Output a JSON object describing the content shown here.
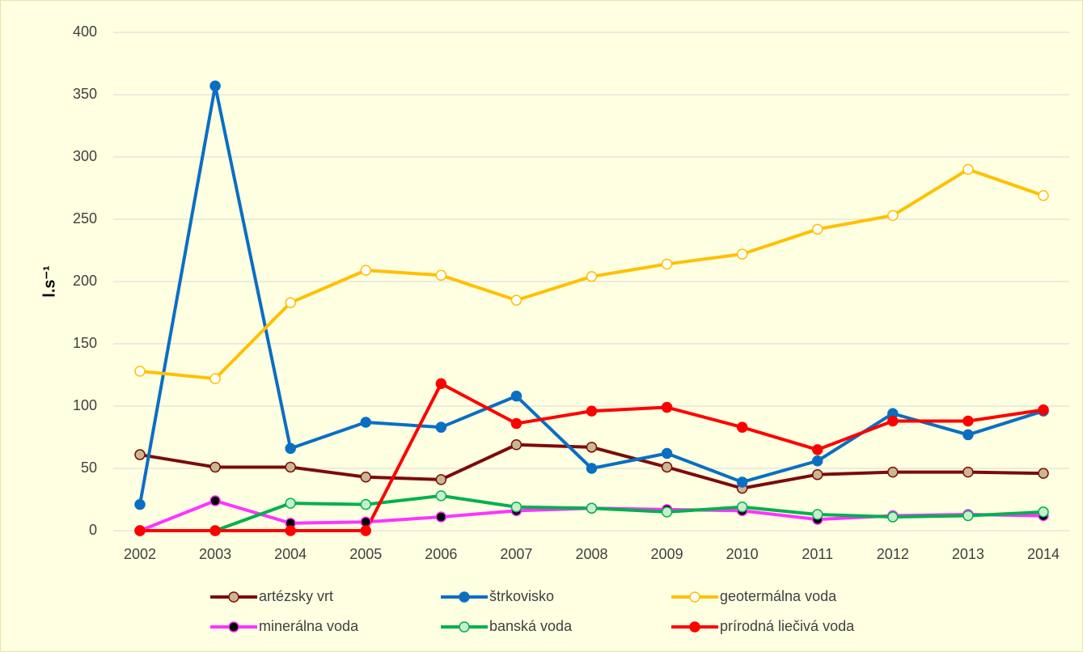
{
  "chart_data": {
    "type": "line",
    "y_label": "l.s⁻¹",
    "categories": [
      "2002",
      "2003",
      "2004",
      "2005",
      "2006",
      "2007",
      "2008",
      "2009",
      "2010",
      "2011",
      "2012",
      "2013",
      "2014"
    ],
    "ylim": [
      0,
      400
    ],
    "yticks": [
      0,
      50,
      100,
      150,
      200,
      250,
      300,
      350,
      400
    ],
    "grid": true,
    "series": [
      {
        "name": "artézsky vrt",
        "color": "#7b0c0c",
        "marker_fill": "#cbb88f",
        "values": [
          61,
          51,
          51,
          43,
          41,
          69,
          67,
          51,
          34,
          45,
          47,
          47,
          46
        ]
      },
      {
        "name": "štrkovisko",
        "color": "#0a6fc2",
        "marker_fill": "#0a6fc2",
        "values": [
          21,
          357,
          66,
          87,
          83,
          108,
          50,
          62,
          39,
          56,
          94,
          77,
          96
        ]
      },
      {
        "name": "geotermálna voda",
        "color": "#ffc000",
        "marker_fill": "#ffffff",
        "values": [
          128,
          122,
          183,
          209,
          205,
          185,
          204,
          214,
          222,
          242,
          253,
          290,
          269
        ]
      },
      {
        "name": "minerálna voda",
        "color": "#ff33ff",
        "marker_fill": "#000000",
        "values": [
          0,
          24,
          6,
          7,
          11,
          16,
          18,
          17,
          16,
          9,
          12,
          13,
          12
        ]
      },
      {
        "name": "banská voda",
        "color": "#00b050",
        "marker_fill": "#c6efce",
        "values": [
          0,
          0,
          22,
          21,
          28,
          19,
          18,
          15,
          19,
          13,
          11,
          12,
          15
        ]
      },
      {
        "name": "prírodná liečivá voda",
        "color": "#ff0000",
        "marker_fill": "#ff0000",
        "values": [
          0,
          0,
          0,
          0,
          118,
          86,
          96,
          99,
          83,
          65,
          88,
          88,
          97
        ]
      }
    ]
  }
}
